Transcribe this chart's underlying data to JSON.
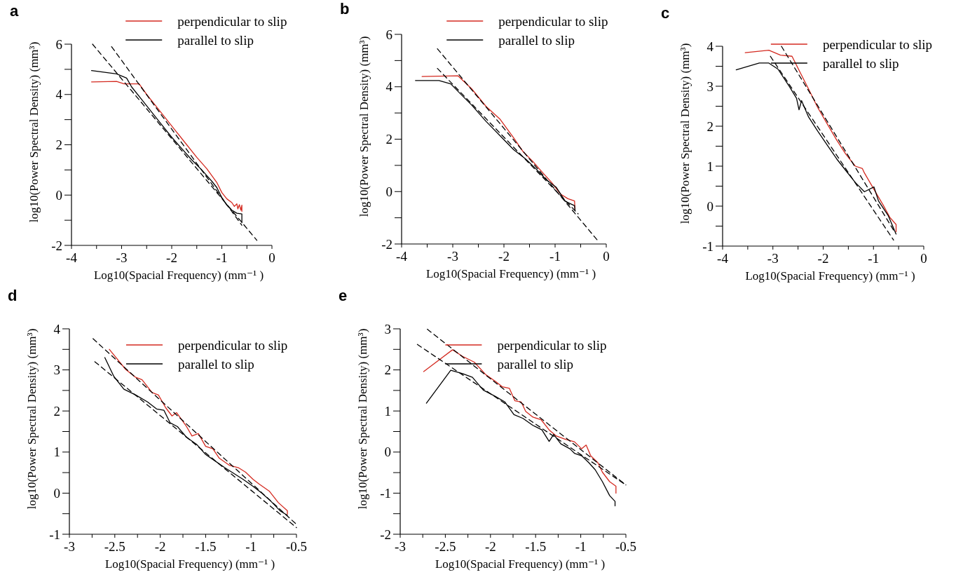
{
  "chart_data": [
    {
      "type": "line",
      "title": "a",
      "xlabel": "Log10(Spacial Frequency)  (mm⁻¹ )",
      "ylabel": "log10(Power Spectral Density)  (mm³)",
      "xlim": [
        -4,
        0
      ],
      "ylim": [
        -2,
        6
      ],
      "xticks": [
        -4,
        {
          "value": -3.5,
          "label": null
        },
        -3,
        {
          "value": -2.5,
          "label": null
        },
        -2,
        {
          "value": -1.5,
          "label": null
        },
        -1,
        {
          "value": -0.5,
          "label": null
        },
        0
      ],
      "yticks": [
        -2,
        {
          "value": -1,
          "label": null
        },
        0,
        {
          "value": 1,
          "label": null
        },
        2,
        {
          "value": 3,
          "label": null
        },
        4,
        {
          "value": 5,
          "label": null
        },
        6
      ],
      "legend": "top right",
      "series": [
        {
          "name": "perpendicular to slip",
          "color": "#d42a20",
          "x": [
            -3.6,
            -3.1,
            -2.95,
            -2.65,
            -2.5,
            -2.3,
            -2.1,
            -1.9,
            -1.7,
            -1.5,
            -1.3,
            -1.1,
            -1.0,
            -0.9,
            -0.8,
            -0.75,
            -0.7,
            -0.68,
            -0.65,
            -0.62,
            -0.6,
            -0.6
          ],
          "values": [
            4.5,
            4.52,
            4.42,
            4.42,
            4.0,
            3.5,
            3.0,
            2.5,
            2.0,
            1.5,
            1.05,
            0.5,
            0.1,
            -0.15,
            -0.3,
            -0.45,
            -0.35,
            -0.55,
            -0.38,
            -0.6,
            -0.4,
            -0.65
          ]
        },
        {
          "name": "parallel to slip",
          "color": "#000000",
          "x": [
            -3.6,
            -3.1,
            -2.9,
            -2.8,
            -2.6,
            -2.4,
            -2.2,
            -2.0,
            -1.8,
            -1.6,
            -1.4,
            -1.2,
            -1.1,
            -1.0,
            -0.9,
            -0.8,
            -0.7,
            -0.6,
            -0.6
          ],
          "values": [
            4.95,
            4.82,
            4.65,
            4.3,
            3.8,
            3.3,
            2.8,
            2.3,
            1.85,
            1.4,
            1.0,
            0.55,
            0.3,
            -0.1,
            -0.4,
            -0.6,
            -0.72,
            -0.75,
            -1.1
          ]
        },
        {
          "color": "#000000",
          "line_style": "dashed",
          "x": [
            -3.58,
            -0.3
          ],
          "values": [
            6.0,
            -1.8
          ]
        },
        {
          "color": "#000000",
          "line_style": "dashed",
          "x": [
            -3.2,
            -0.6
          ],
          "values": [
            5.9,
            -1.2
          ]
        }
      ]
    },
    {
      "type": "line",
      "title": "b",
      "xlabel": "Log10(Spacial Frequency)  (mm⁻¹ )",
      "ylabel": "log10(Power Spectral Density)  (mm³)",
      "xlim": [
        -4,
        0
      ],
      "ylim": [
        -2,
        6
      ],
      "xticks": [
        -4,
        {
          "value": -3.5,
          "label": null
        },
        -3,
        {
          "value": -2.5,
          "label": null
        },
        -2,
        {
          "value": -1.5,
          "label": null
        },
        -1,
        {
          "value": -0.5,
          "label": null
        },
        0
      ],
      "yticks": [
        -2,
        {
          "value": -1,
          "label": null
        },
        0,
        {
          "value": 1,
          "label": null
        },
        2,
        {
          "value": 3,
          "label": null
        },
        4,
        {
          "value": 5,
          "label": null
        },
        6
      ],
      "legend": "top right",
      "series": [
        {
          "name": "perpendicular to slip",
          "color": "#d42a20",
          "x": [
            -3.6,
            -2.9,
            -2.63,
            -2.35,
            -2.08,
            -1.81,
            -1.62,
            -1.44,
            -1.26,
            -1.07,
            -0.89,
            -0.75,
            -0.62,
            -0.61
          ],
          "values": [
            4.39,
            4.42,
            3.92,
            3.25,
            2.77,
            2.05,
            1.51,
            1.16,
            0.76,
            0.35,
            -0.1,
            -0.27,
            -0.36,
            -0.68
          ]
        },
        {
          "name": "parallel to slip",
          "color": "#000000",
          "x": [
            -3.73,
            -3.27,
            -3.04,
            -2.86,
            -2.63,
            -2.35,
            -2.08,
            -1.81,
            -1.58,
            -1.39,
            -1.17,
            -0.98,
            -0.8,
            -0.62,
            -0.61
          ],
          "values": [
            4.24,
            4.24,
            4.11,
            3.75,
            3.3,
            2.68,
            2.14,
            1.6,
            1.25,
            0.9,
            0.45,
            0.17,
            -0.37,
            -0.54,
            -0.72
          ]
        },
        {
          "color": "#000000",
          "line_style": "dashed",
          "x": [
            -3.3,
            -0.18
          ],
          "values": [
            5.45,
            -1.84
          ]
        },
        {
          "color": "#000000",
          "line_style": "dashed",
          "x": [
            -3.3,
            -0.55
          ],
          "values": [
            4.7,
            -0.85
          ]
        }
      ]
    },
    {
      "type": "line",
      "title": "c",
      "xlabel": "Log10(Spacial Frequency)  (mm⁻¹ )",
      "ylabel": "log10(Power Spectral Density)  (mm³)",
      "xlim": [
        -4,
        0
      ],
      "ylim": [
        -1,
        4
      ],
      "xticks": [
        -4,
        {
          "value": -3.5,
          "label": null
        },
        -3,
        {
          "value": -2.5,
          "label": null
        },
        -2,
        {
          "value": -1.5,
          "label": null
        },
        -1,
        {
          "value": -0.5,
          "label": null
        },
        0
      ],
      "yticks": [
        -1,
        {
          "value": -0.5,
          "label": null
        },
        0,
        {
          "value": 0.5,
          "label": null
        },
        1,
        {
          "value": 1.5,
          "label": null
        },
        2,
        {
          "value": 2.5,
          "label": null
        },
        3,
        {
          "value": 3.5,
          "label": null
        },
        4
      ],
      "legend": "top right",
      "series": [
        {
          "name": "perpendicular to slip",
          "color": "#d42a20",
          "x": [
            -3.55,
            -3.08,
            -2.85,
            -2.62,
            -2.48,
            -2.29,
            -2.11,
            -1.92,
            -1.73,
            -1.55,
            -1.36,
            -1.22,
            -1.18,
            -0.99,
            -0.8,
            -0.67,
            -0.55,
            -0.55
          ],
          "values": [
            3.84,
            3.9,
            3.78,
            3.75,
            3.4,
            2.93,
            2.47,
            2.06,
            1.65,
            1.3,
            1.0,
            0.94,
            0.83,
            0.42,
            0.01,
            -0.29,
            -0.46,
            -0.64
          ]
        },
        {
          "name": "parallel to slip",
          "color": "#000000",
          "x": [
            -3.73,
            -3.27,
            -3.08,
            -2.9,
            -2.67,
            -2.53,
            -2.48,
            -2.43,
            -2.29,
            -2.11,
            -1.92,
            -1.73,
            -1.55,
            -1.36,
            -1.18,
            -0.99,
            -0.9,
            -0.71,
            -0.55
          ],
          "values": [
            3.41,
            3.58,
            3.58,
            3.43,
            2.99,
            2.7,
            2.41,
            2.64,
            2.23,
            1.88,
            1.53,
            1.18,
            0.89,
            0.59,
            0.36,
            0.48,
            0.13,
            -0.23,
            -0.7
          ]
        },
        {
          "color": "#000000",
          "line_style": "dashed",
          "x": [
            -2.83,
            -0.6
          ],
          "values": [
            4.0,
            -0.6
          ]
        },
        {
          "color": "#000000",
          "line_style": "dashed",
          "x": [
            -3.05,
            -0.6
          ],
          "values": [
            3.75,
            -0.85
          ]
        }
      ]
    },
    {
      "type": "line",
      "title": "d",
      "xlabel": "Log10(Spacial Frequency)  (mm⁻¹ )",
      "ylabel": "log10(Power Spectral Density)  (mm³)",
      "xlim": [
        -3,
        -0.5
      ],
      "ylim": [
        -1,
        4
      ],
      "xticks": [
        -3,
        {
          "value": -2.75,
          "label": null
        },
        -2.5,
        {
          "value": -2.25,
          "label": null
        },
        -2,
        {
          "value": -1.75,
          "label": null
        },
        -1.5,
        {
          "value": -1.25,
          "label": null
        },
        -1,
        {
          "value": -0.75,
          "label": null
        },
        -0.5
      ],
      "yticks": [
        -1,
        {
          "value": -0.5,
          "label": null
        },
        0,
        {
          "value": 0.5,
          "label": null
        },
        1,
        {
          "value": 1.5,
          "label": null
        },
        2,
        {
          "value": 2.5,
          "label": null
        },
        3,
        {
          "value": 3.5,
          "label": null
        },
        4
      ],
      "legend": "top right",
      "series": [
        {
          "name": "perpendicular to slip",
          "color": "#d42a20",
          "x": [
            -2.56,
            -2.38,
            -2.27,
            -2.2,
            -2.09,
            -2.02,
            -1.94,
            -1.87,
            -1.82,
            -1.71,
            -1.65,
            -1.58,
            -1.5,
            -1.42,
            -1.35,
            -1.24,
            -1.14,
            -1.06,
            -0.98,
            -0.91,
            -0.8,
            -0.7,
            -0.6,
            -0.6
          ],
          "values": [
            3.5,
            3.01,
            2.82,
            2.76,
            2.45,
            2.39,
            2.08,
            1.88,
            1.96,
            1.62,
            1.39,
            1.45,
            1.14,
            1.08,
            0.85,
            0.68,
            0.62,
            0.51,
            0.34,
            0.22,
            0.05,
            -0.23,
            -0.43,
            -0.51
          ]
        },
        {
          "name": "parallel to slip",
          "color": "#000000",
          "x": [
            -2.61,
            -2.51,
            -2.4,
            -2.27,
            -2.14,
            -2.04,
            -1.96,
            -1.89,
            -1.81,
            -1.71,
            -1.6,
            -1.5,
            -1.4,
            -1.29,
            -1.19,
            -1.09,
            -0.98,
            -0.88,
            -0.78,
            -0.68,
            -0.6
          ],
          "values": [
            3.3,
            2.84,
            2.53,
            2.39,
            2.22,
            2.05,
            2.02,
            1.71,
            1.62,
            1.36,
            1.19,
            0.94,
            0.79,
            0.62,
            0.48,
            0.34,
            0.17,
            0.0,
            -0.2,
            -0.43,
            -0.54
          ]
        },
        {
          "color": "#000000",
          "line_style": "dashed",
          "x": [
            -2.74,
            -0.5
          ],
          "values": [
            3.76,
            -0.76
          ]
        },
        {
          "color": "#000000",
          "line_style": "dashed",
          "x": [
            -2.72,
            -0.5
          ],
          "values": [
            3.2,
            -0.84
          ]
        }
      ]
    },
    {
      "type": "line",
      "title": "e",
      "xlabel": "Log10(Spacial Frequency)  (mm⁻¹ )",
      "ylabel": "log10(Power Spectral Density)  (mm³)",
      "xlim": [
        -3,
        -0.5
      ],
      "ylim": [
        -2,
        3
      ],
      "xticks": [
        -3,
        {
          "value": -2.75,
          "label": null
        },
        -2.5,
        {
          "value": -2.25,
          "label": null
        },
        -2,
        {
          "value": -1.75,
          "label": null
        },
        -1.5,
        {
          "value": -1.25,
          "label": null
        },
        -1,
        {
          "value": -0.75,
          "label": null
        },
        -0.5
      ],
      "yticks": [
        -2,
        {
          "value": -1.5,
          "label": null
        },
        -1,
        {
          "value": -0.5,
          "label": null
        },
        0,
        {
          "value": 0.5,
          "label": null
        },
        1,
        {
          "value": 1.5,
          "label": null
        },
        2,
        {
          "value": 2.5,
          "label": null
        },
        3
      ],
      "legend": "top right",
      "series": [
        {
          "name": "perpendicular to slip",
          "color": "#d42a20",
          "x": [
            -2.74,
            -2.42,
            -2.31,
            -2.18,
            -2.05,
            -1.95,
            -1.87,
            -1.79,
            -1.73,
            -1.66,
            -1.61,
            -1.53,
            -1.44,
            -1.35,
            -1.27,
            -1.17,
            -1.07,
            -0.99,
            -0.94,
            -0.89,
            -0.81,
            -0.76,
            -0.68,
            -0.61,
            -0.61
          ],
          "values": [
            1.96,
            2.49,
            2.33,
            2.19,
            1.88,
            1.73,
            1.59,
            1.55,
            1.25,
            1.22,
            0.99,
            0.85,
            0.79,
            0.54,
            0.39,
            0.31,
            0.25,
            0.08,
            0.17,
            -0.09,
            -0.26,
            -0.49,
            -0.72,
            -0.83,
            -1.0
          ]
        },
        {
          "name": "parallel to slip",
          "color": "#000000",
          "x": [
            -2.71,
            -2.44,
            -2.31,
            -2.2,
            -2.08,
            -1.95,
            -1.84,
            -1.74,
            -1.64,
            -1.53,
            -1.43,
            -1.35,
            -1.3,
            -1.22,
            -1.12,
            -1.07,
            -0.99,
            -0.91,
            -0.84,
            -0.76,
            -0.68,
            -0.62,
            -0.62
          ],
          "values": [
            1.19,
            1.99,
            1.91,
            1.82,
            1.51,
            1.36,
            1.22,
            0.91,
            0.82,
            0.65,
            0.54,
            0.26,
            0.43,
            0.2,
            0.08,
            -0.03,
            -0.09,
            -0.26,
            -0.43,
            -0.72,
            -1.06,
            -1.2,
            -1.31
          ]
        },
        {
          "color": "#000000",
          "line_style": "dashed",
          "x": [
            -2.7,
            -0.5
          ],
          "values": [
            2.99,
            -0.8
          ]
        },
        {
          "color": "#000000",
          "line_style": "dashed",
          "x": [
            -2.81,
            -0.5
          ],
          "values": [
            2.62,
            -0.8
          ]
        }
      ]
    }
  ]
}
